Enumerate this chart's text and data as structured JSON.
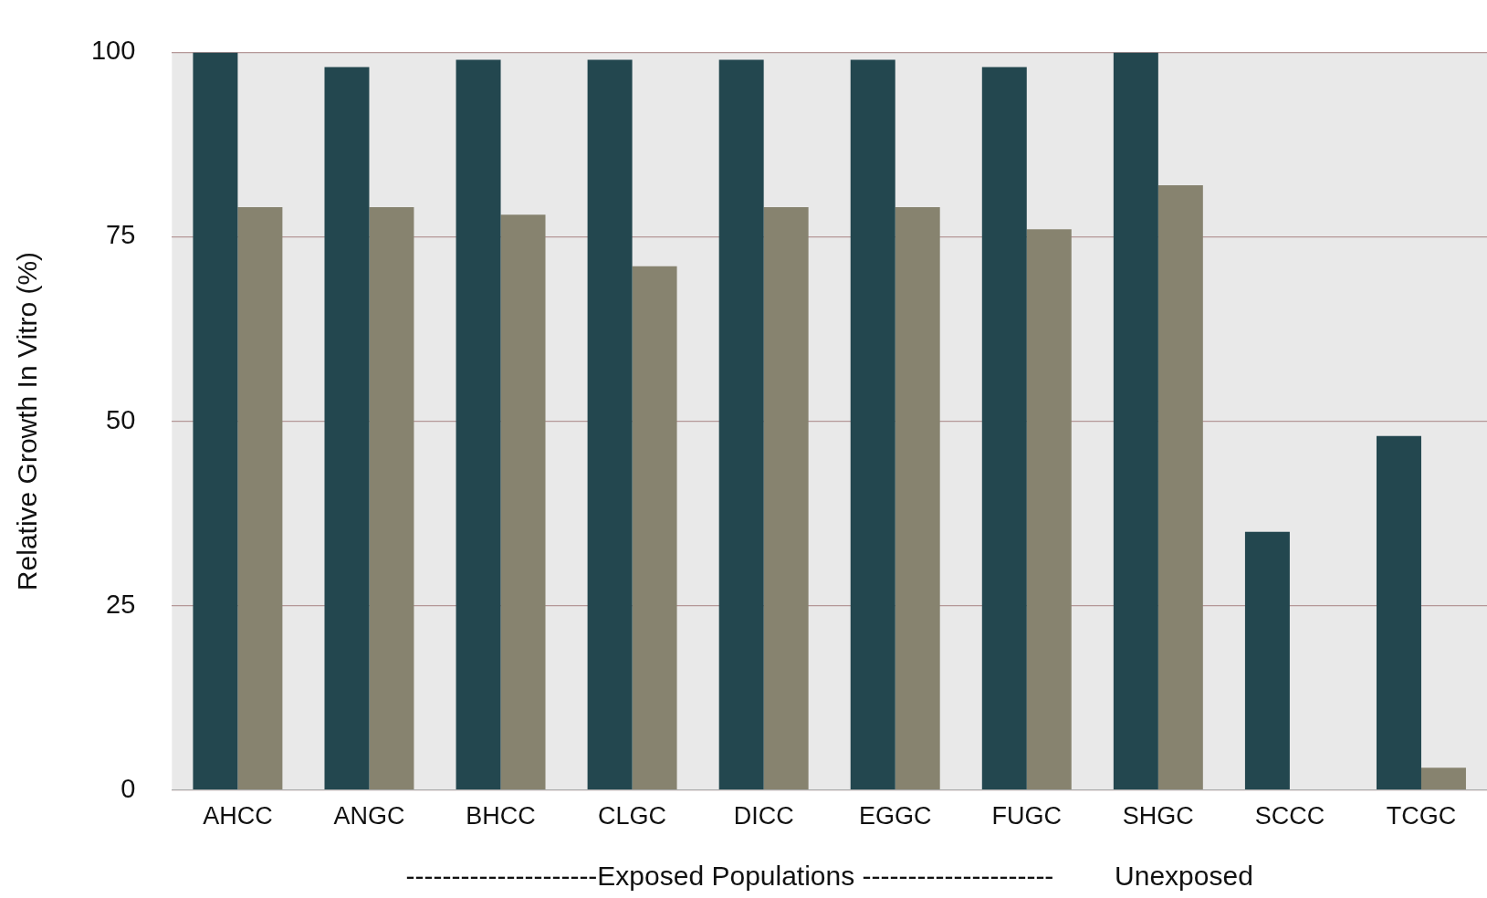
{
  "chart_data": {
    "type": "bar",
    "ylabel": "Relative Growth In Vitro (%)",
    "xlabel": "---------------------Exposed Populations ---------------------        Unexposed",
    "categories": [
      "AHCC",
      "ANGC",
      "BHCC",
      "CLGC",
      "DICC",
      "EGGC",
      "FUGC",
      "SHGC",
      "SCCC",
      "TCGC"
    ],
    "series": [
      {
        "color": "#23474f",
        "values": [
          100,
          98,
          99,
          99,
          99,
          99,
          98,
          100,
          35,
          48
        ]
      },
      {
        "color": "#87836f",
        "values": [
          79,
          79,
          78,
          71,
          79,
          79,
          76,
          82,
          0,
          3
        ]
      }
    ],
    "ylim": [
      0,
      100
    ],
    "yticks": [
      0,
      25,
      50,
      75,
      100
    ],
    "grid": "y",
    "legend": false
  }
}
